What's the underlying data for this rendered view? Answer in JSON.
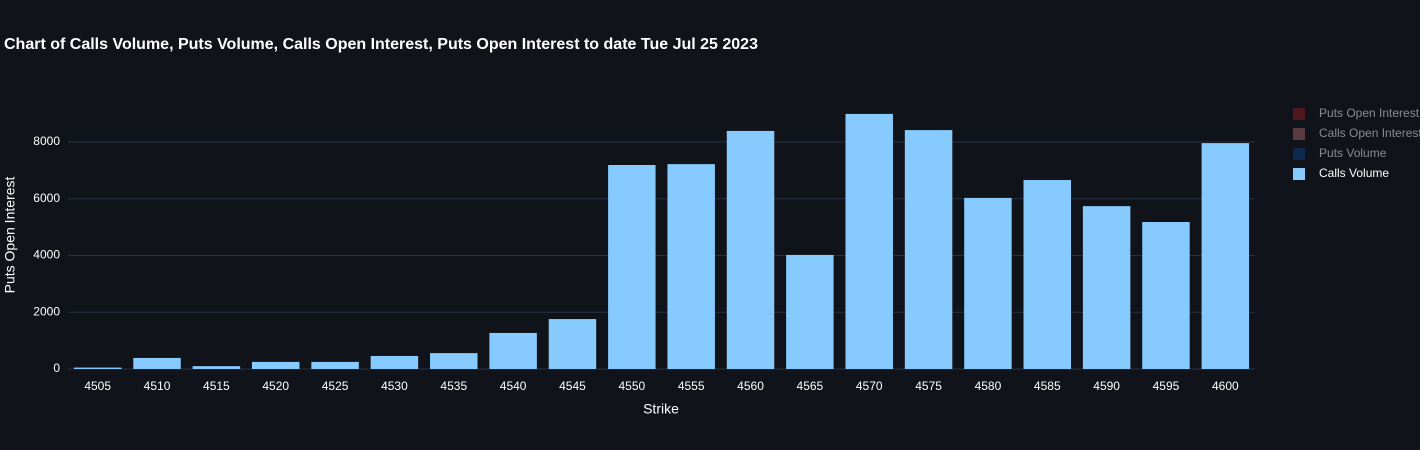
{
  "chart_data": {
    "type": "bar",
    "title": "Chart of Calls Volume, Puts Volume, Calls Open Interest, Puts Open Interest to date Tue Jul 25 2023",
    "x_label": "Strike",
    "y_label": "Puts Open Interest",
    "categories": [
      "4505",
      "4510",
      "4515",
      "4520",
      "4525",
      "4530",
      "4535",
      "4540",
      "4545",
      "4550",
      "4555",
      "4560",
      "4565",
      "4570",
      "4575",
      "4580",
      "4585",
      "4590",
      "4595",
      "4600"
    ],
    "series": [
      {
        "name": "Puts Open Interest",
        "color": "#8f1d21",
        "visible": false
      },
      {
        "name": "Calls Open Interest",
        "color": "#a36565",
        "visible": false
      },
      {
        "name": "Puts Volume",
        "color": "#0b3f80",
        "visible": false
      },
      {
        "name": "Calls Volume",
        "color": "#87cafe",
        "visible": true,
        "values": [
          50,
          390,
          100,
          250,
          250,
          460,
          560,
          1270,
          1760,
          7190,
          7220,
          8390,
          4020,
          8990,
          8420,
          6030,
          6660,
          5740,
          5180,
          7960
        ]
      }
    ],
    "ylim": [
      0,
      9480
    ],
    "yticks": [
      0,
      2000,
      4000,
      6000,
      8000
    ],
    "grid": true,
    "legend": "right"
  }
}
